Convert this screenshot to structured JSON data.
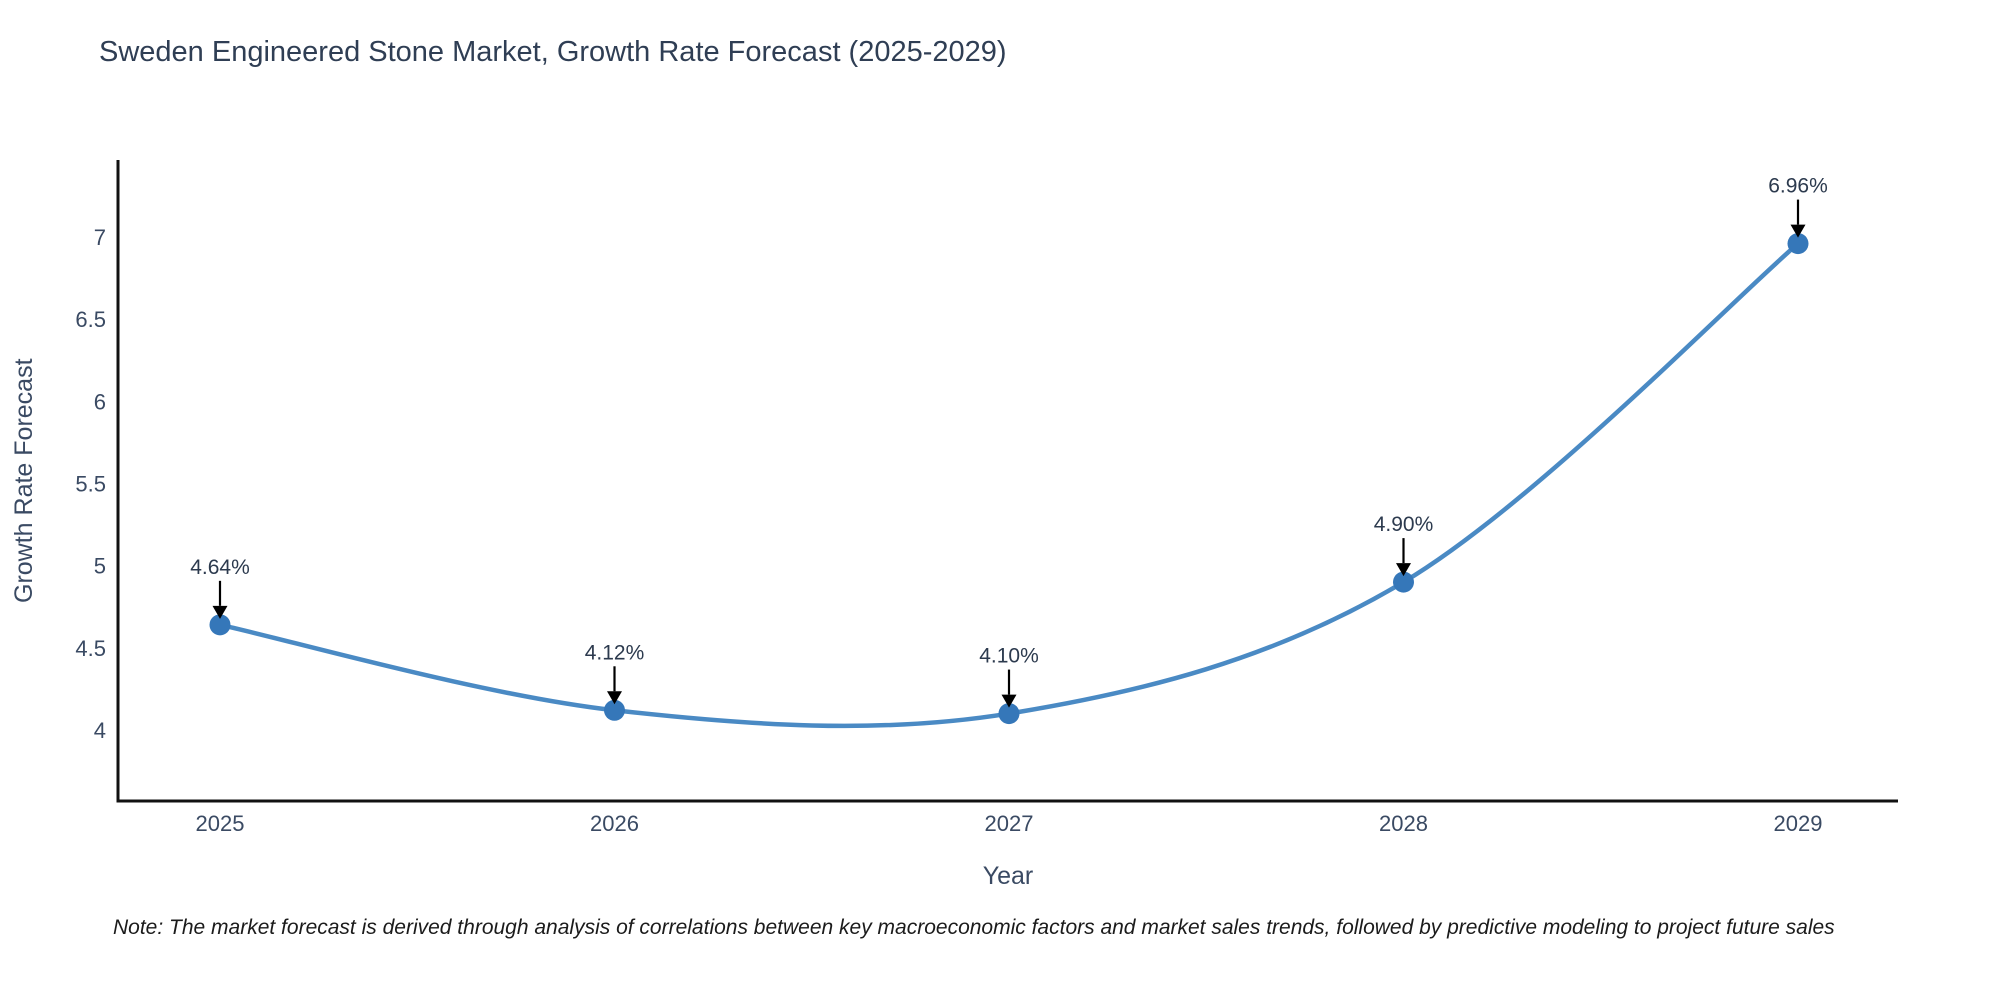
{
  "title": "Sweden Engineered Stone Market, Growth Rate Forecast (2025-2029)",
  "note": "Note: The market forecast is derived through analysis of correlations between key macroeconomic factors and market sales trends, followed by predictive modeling to project future sales",
  "chart_data": {
    "type": "line",
    "title": "Sweden Engineered Stone Market, Growth Rate Forecast (2025-2029)",
    "xlabel": "Year",
    "ylabel": "Growth Rate Forecast",
    "categories": [
      "2025",
      "2026",
      "2027",
      "2028",
      "2029"
    ],
    "series": [
      {
        "name": "Growth Rate Forecast",
        "values": [
          4.64,
          4.12,
          4.1,
          4.9,
          6.96
        ]
      }
    ],
    "point_labels": [
      "4.64%",
      "4.12%",
      "4.10%",
      "4.90%",
      "6.96%"
    ],
    "yticks": [
      4,
      4.5,
      5,
      5.5,
      6,
      6.5,
      7
    ],
    "ylim": [
      3.57,
      7.47
    ],
    "grid": false,
    "legend": false,
    "curve": "spline",
    "annotations": "down-arrows-above-points",
    "colors": {
      "line": "#4a8ac4",
      "marker": "#3577b9",
      "axis": "#111111",
      "tick_label": "#3a4a63",
      "point_label": "#2c3a4e",
      "arrow": "#000000",
      "title": "#2f3e54",
      "background": "#ffffff"
    }
  }
}
